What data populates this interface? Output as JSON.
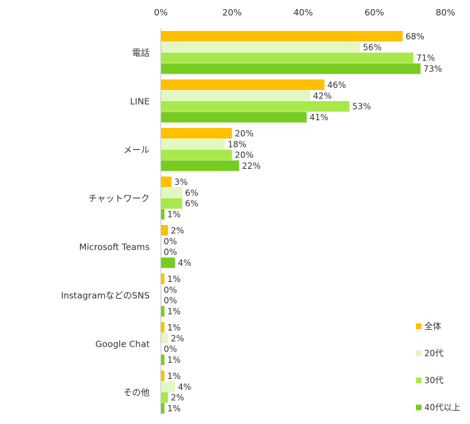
{
  "chart_data": {
    "type": "bar",
    "orientation": "horizontal",
    "categories": [
      "電話",
      "LINE",
      "メール",
      "チャットワーク",
      "Microsoft Teams",
      "InstagramなどのSNS",
      "Google Chat",
      "その他"
    ],
    "series": [
      {
        "name": "全体",
        "color": "#FFC000",
        "values": [
          68,
          46,
          20,
          3,
          2,
          1,
          1,
          1
        ]
      },
      {
        "name": "20代",
        "color": "#E2F7C2",
        "values": [
          56,
          42,
          18,
          6,
          0,
          0,
          2,
          4
        ]
      },
      {
        "name": "30代",
        "color": "#A9E84A",
        "values": [
          71,
          53,
          20,
          6,
          0,
          0,
          0,
          2
        ]
      },
      {
        "name": "40代以上",
        "color": "#77CC22",
        "values": [
          73,
          41,
          22,
          1,
          4,
          1,
          1,
          1
        ]
      }
    ],
    "value_suffix": "%",
    "xlim": [
      0,
      80
    ],
    "xticks": [
      0,
      20,
      40,
      60,
      80
    ],
    "xtick_labels": [
      "0%",
      "20%",
      "40%",
      "60%",
      "80%"
    ],
    "x_axis_position": "top",
    "grid": false,
    "legend_position": "bottom-right"
  }
}
